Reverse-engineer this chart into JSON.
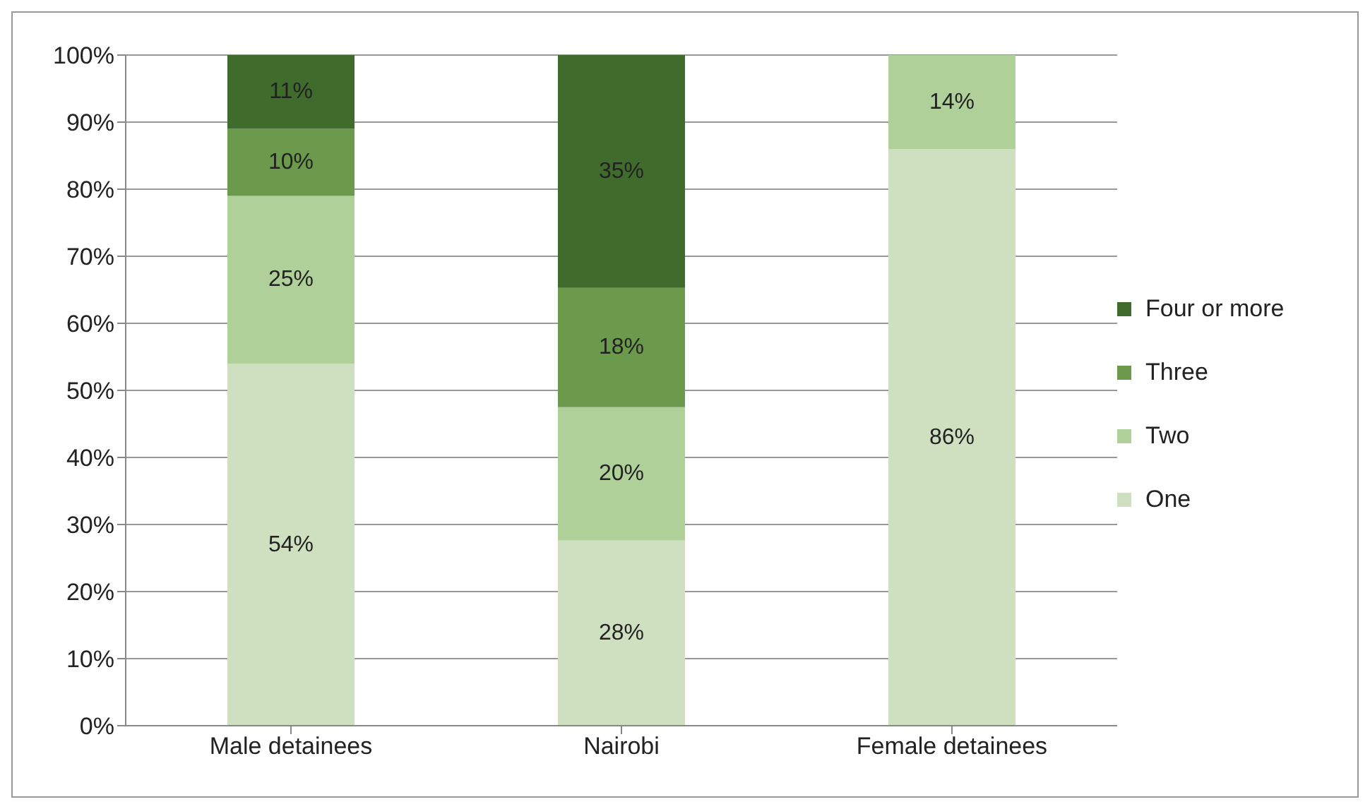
{
  "chart_data": {
    "type": "bar",
    "stacked": true,
    "categories": [
      "Male detainees",
      "Nairobi",
      "Female detainees"
    ],
    "series": [
      {
        "name": "One",
        "color": "#cfe0c0",
        "values": [
          54,
          27.6,
          86
        ],
        "value_labels": [
          "54%",
          "28%",
          "86%"
        ]
      },
      {
        "name": "Two",
        "color": "#b0d09a",
        "values": [
          25,
          19.9,
          14
        ],
        "value_labels": [
          "25%",
          "20%",
          "14%"
        ]
      },
      {
        "name": "Three",
        "color": "#6b9a4c",
        "values": [
          10,
          17.8,
          null
        ],
        "value_labels": [
          "10%",
          "18%",
          null
        ]
      },
      {
        "name": "Four or more",
        "color": "#3f6b2c",
        "values": [
          11,
          34.7,
          null
        ],
        "value_labels": [
          "11%",
          "35%",
          null
        ]
      }
    ],
    "ylim": [
      0,
      100
    ],
    "yticks": [
      {
        "value": 0,
        "label": "0%"
      },
      {
        "value": 10,
        "label": "10%"
      },
      {
        "value": 20,
        "label": "20%"
      },
      {
        "value": 30,
        "label": "30%"
      },
      {
        "value": 40,
        "label": "40%"
      },
      {
        "value": 50,
        "label": "50%"
      },
      {
        "value": 60,
        "label": "60%"
      },
      {
        "value": 70,
        "label": "70%"
      },
      {
        "value": 80,
        "label": "80%"
      },
      {
        "value": 90,
        "label": "90%"
      },
      {
        "value": 100,
        "label": "100%"
      }
    ],
    "grid": "y",
    "legend": "right"
  }
}
